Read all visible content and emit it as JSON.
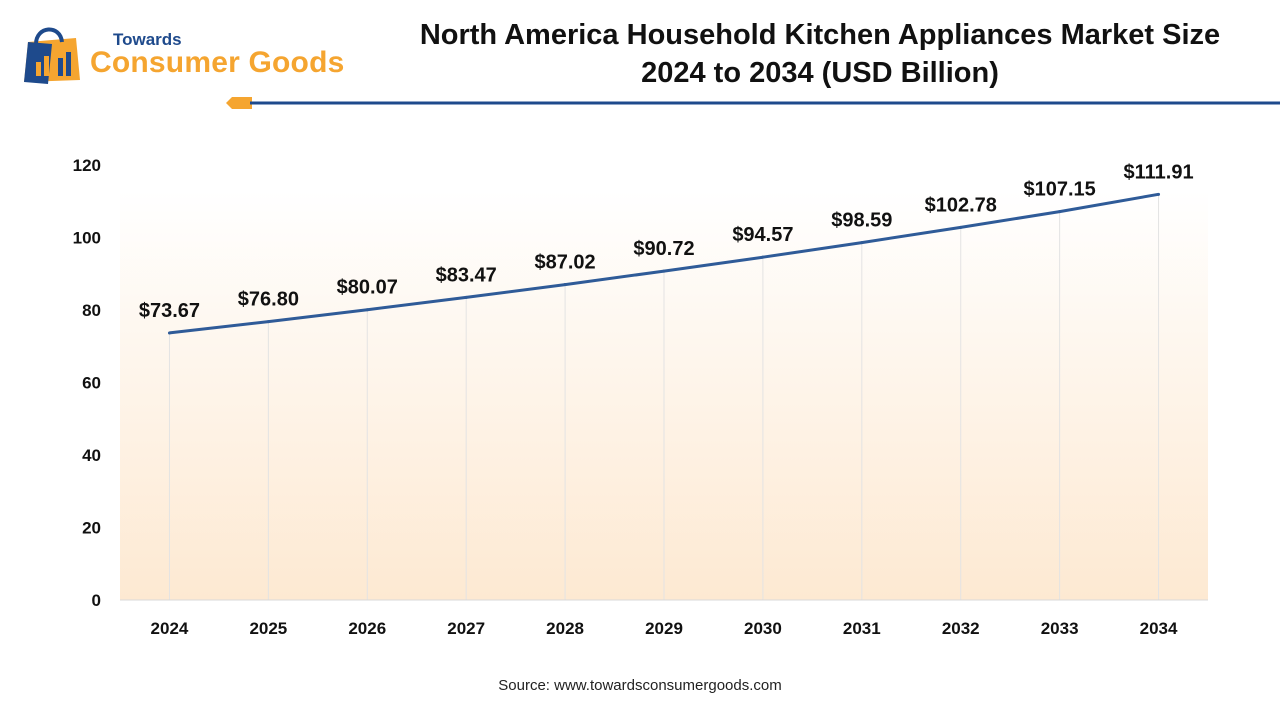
{
  "brand": {
    "towards": "Towards",
    "name": "Consumer Goods"
  },
  "title_line1": "North America Household Kitchen Appliances Market Size",
  "title_line2": "2024 to 2034 (USD Billion)",
  "source": "Source: www.towardsconsumergoods.com",
  "colors": {
    "line": "#2f5b98",
    "accent": "#f5a530",
    "navy": "#1e4a8c",
    "plot_top": "#ffffff",
    "plot_bottom": "#fde9d2"
  },
  "chart_data": {
    "type": "line",
    "title": "North America Household Kitchen Appliances Market Size 2024 to 2034 (USD Billion)",
    "categories": [
      "2024",
      "2025",
      "2026",
      "2027",
      "2028",
      "2029",
      "2030",
      "2031",
      "2032",
      "2033",
      "2034"
    ],
    "series": [
      {
        "values": [
          73.67,
          76.8,
          80.07,
          83.47,
          87.02,
          90.72,
          94.57,
          98.59,
          102.78,
          107.15,
          111.91
        ]
      }
    ],
    "data_labels": [
      "$73.67",
      "$76.80",
      "$80.07",
      "$83.47",
      "$87.02",
      "$90.72",
      "$94.57",
      "$98.59",
      "$102.78",
      "$107.15",
      "$111.91"
    ],
    "y_ticks": [
      "0",
      "20",
      "40",
      "60",
      "80",
      "100",
      "120"
    ],
    "ylim": [
      0,
      120
    ],
    "xlabel": "",
    "ylabel": "",
    "grid": "vertical"
  }
}
